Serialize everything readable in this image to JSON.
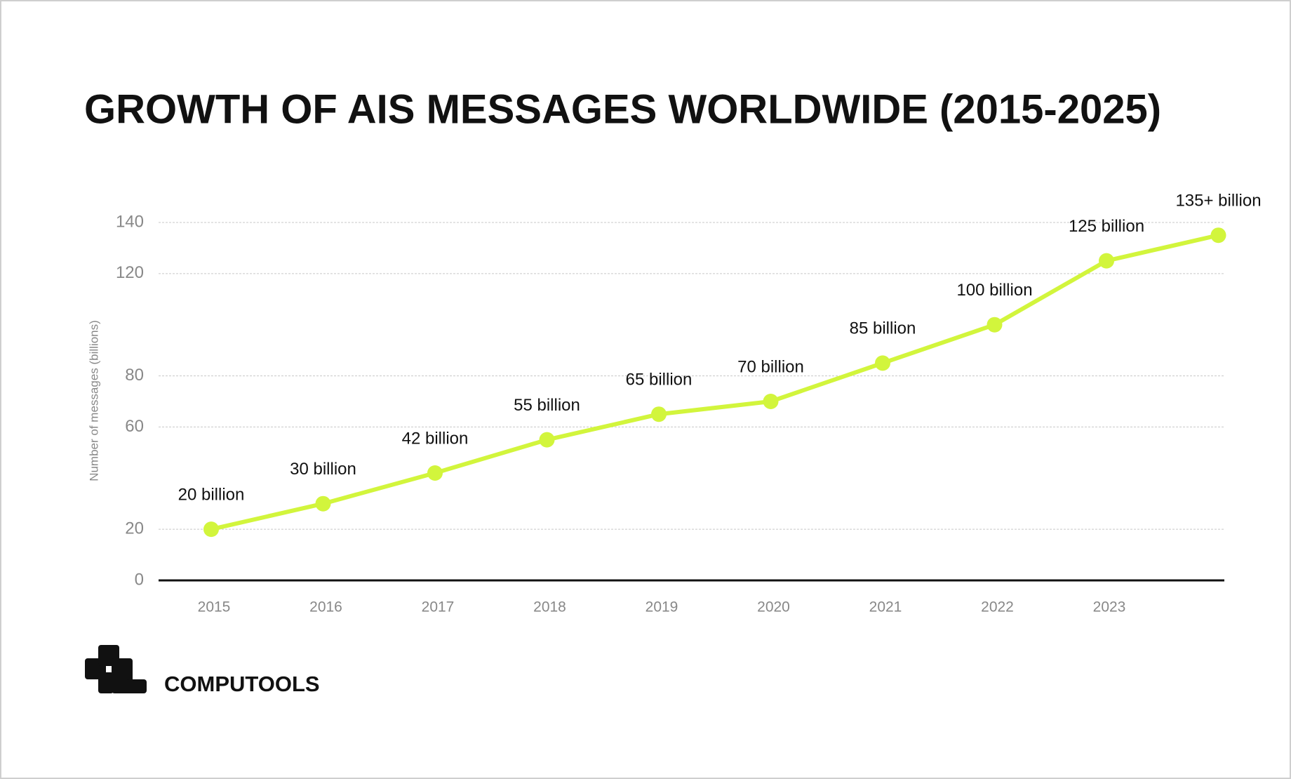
{
  "chart_data": {
    "type": "line",
    "title": "GROWTH OF AIS MESSAGES WORLDWIDE (2015-2025)",
    "y_label": "Number of messages (billions)",
    "categories": [
      "2015",
      "2016",
      "2017",
      "2018",
      "2019",
      "2020",
      "2021",
      "2022",
      "2023",
      null
    ],
    "values": [
      20,
      30,
      42,
      55,
      65,
      70,
      85,
      100,
      125,
      135
    ],
    "value_labels": [
      "20 billion",
      "30 billion",
      "42 billion",
      "55 billion",
      "65 billion",
      "70 billion",
      "85 billion",
      "100 billion",
      "125 billion",
      "135+ billion"
    ],
    "color": "#d2f53c",
    "ylim": [
      0,
      140
    ],
    "yticks": [
      0,
      20,
      60,
      80,
      120,
      140
    ],
    "grid": true
  },
  "brand": {
    "name": "COMPUTOOLS"
  }
}
